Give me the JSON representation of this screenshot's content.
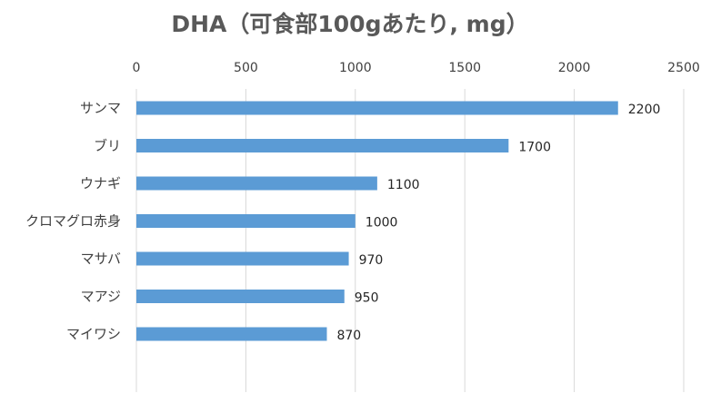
{
  "chart_data": {
    "type": "bar",
    "orientation": "horizontal",
    "title": "DHA（可食部100gあたり, mg）",
    "xlabel": "",
    "ylabel": "",
    "xlim": [
      0,
      2500
    ],
    "x_ticks": [
      0,
      500,
      1000,
      1500,
      2000,
      2500
    ],
    "x_axis_position": "top",
    "grid": true,
    "legend": "none",
    "data_labels": true,
    "categories": [
      "サンマ",
      "ブリ",
      "ウナギ",
      "クロマグロ赤身",
      "マサバ",
      "マアジ",
      "マイワシ"
    ],
    "values": [
      2200,
      1700,
      1100,
      1000,
      970,
      950,
      870
    ],
    "bar_color": "#5b9bd5"
  }
}
